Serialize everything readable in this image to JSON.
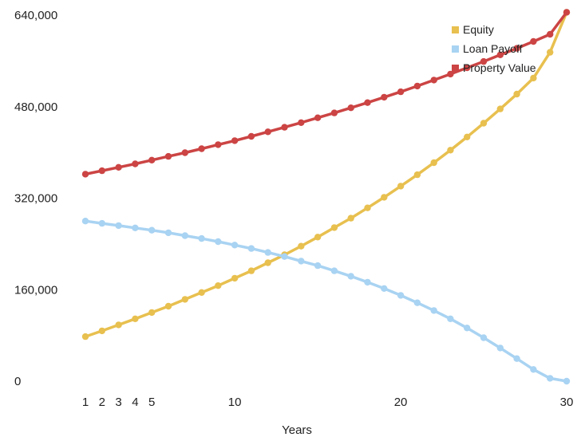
{
  "chart_data": {
    "type": "line",
    "title": "",
    "xlabel": "Years",
    "ylabel": "",
    "x": [
      1,
      2,
      3,
      4,
      5,
      6,
      7,
      8,
      9,
      10,
      11,
      12,
      13,
      14,
      15,
      16,
      17,
      18,
      19,
      20,
      21,
      22,
      23,
      24,
      25,
      26,
      27,
      28,
      29,
      30
    ],
    "xticks": [
      1,
      2,
      3,
      4,
      5,
      10,
      20,
      30
    ],
    "xlim": [
      1,
      30
    ],
    "yticks": [
      "0",
      "160,000",
      "320,000",
      "480,000",
      "640,000"
    ],
    "ylim": [
      0,
      640000
    ],
    "grid": false,
    "legend_position": "top-right",
    "series": [
      {
        "name": "Equity",
        "color": "#e8c04f",
        "values": [
          78000,
          88000,
          98500,
          109000,
          120000,
          131000,
          143000,
          155000,
          167000,
          180000,
          193000,
          207000,
          221000,
          236000,
          252000,
          268500,
          285000,
          303000,
          321500,
          341000,
          361000,
          382000,
          404000,
          427000,
          451000,
          476000,
          502000,
          530000,
          575000,
          645000
        ]
      },
      {
        "name": "Loan Payoff",
        "color": "#a9d3f2",
        "values": [
          280000,
          276000,
          272000,
          268000,
          264000,
          259500,
          254500,
          249500,
          244000,
          238000,
          232000,
          225000,
          218000,
          210000,
          202000,
          193000,
          183500,
          173000,
          162000,
          150000,
          137000,
          123500,
          109000,
          93000,
          76000,
          58000,
          39500,
          20500,
          5000,
          0
        ]
      },
      {
        "name": "Property Value",
        "color": "#cc4444",
        "values": [
          362000,
          368000,
          374000,
          380000,
          386500,
          393000,
          399500,
          406500,
          413500,
          420500,
          428000,
          436000,
          444000,
          452000,
          460500,
          469000,
          478000,
          487000,
          496500,
          506000,
          516000,
          526500,
          537000,
          548000,
          559000,
          570500,
          582000,
          594000,
          606500,
          645000
        ]
      }
    ]
  }
}
